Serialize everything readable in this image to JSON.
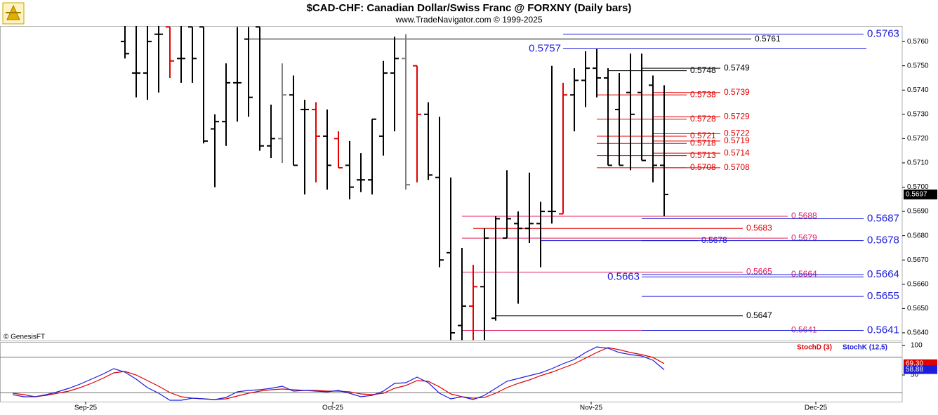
{
  "chart_data": [
    {
      "type": "ohlc",
      "title": "$CAD-CHF:  Canadian Dollar/Swiss Franc @ FORXNY  (Daily bars)",
      "subtitle": "www.TradeNavigator.com © 1999-2025",
      "credit": "© GenesisFT",
      "last_label": "0.5697",
      "xlim": [
        -11.125,
        69.1875
      ],
      "xticks": [
        {
          "value": -3.5,
          "label": "Sep-25"
        },
        {
          "value": 18.5,
          "label": "Oct-25"
        },
        {
          "value": 41.5,
          "label": "Nov-25"
        },
        {
          "value": 61.5,
          "label": "Dec-25"
        }
      ],
      "ylim": [
        0.56368,
        0.57664
      ],
      "yticks": [
        {
          "value": 0.564,
          "label": "0.5640"
        },
        {
          "value": 0.565,
          "label": "0.5650"
        },
        {
          "value": 0.566,
          "label": "0.5660"
        },
        {
          "value": 0.567,
          "label": "0.5670"
        },
        {
          "value": 0.568,
          "label": "0.5680"
        },
        {
          "value": 0.569,
          "label": "0.5690"
        },
        {
          "value": 0.57,
          "label": "0.5700"
        },
        {
          "value": 0.571,
          "label": "0.5710"
        },
        {
          "value": 0.572,
          "label": "0.5720"
        },
        {
          "value": 0.573,
          "label": "0.5730"
        },
        {
          "value": 0.574,
          "label": "0.5740"
        },
        {
          "value": 0.575,
          "label": "0.5750"
        },
        {
          "value": 0.576,
          "label": "0.5760"
        }
      ],
      "x": [
        0,
        1,
        2,
        3,
        4,
        5,
        6,
        7,
        8,
        9,
        10,
        11,
        12,
        13,
        14,
        15,
        16,
        17,
        18,
        19,
        20,
        21,
        22,
        23,
        24,
        25,
        26,
        27,
        28,
        29,
        30,
        31,
        32,
        33,
        34,
        35,
        36,
        37,
        38,
        39,
        40,
        41,
        42,
        43,
        44,
        45,
        46,
        47,
        48
      ],
      "open": [
        0.576,
        0.5747,
        0.5747,
        0.5763,
        0.5766,
        0.5753,
        0.5766,
        0.5766,
        0.5724,
        0.5727,
        0.5743,
        0.5761,
        0.5766,
        0.5717,
        0.572,
        0.5738,
        0.5732,
        0.5732,
        0.5721,
        0.572,
        0.5709,
        0.5703,
        0.5703,
        0.5721,
        0.5747,
        0.5753,
        0.575,
        0.573,
        0.5704,
        0.5673,
        0.5643,
        0.5651,
        0.5659,
        0.5646,
        0.5679,
        0.5685,
        0.5683,
        0.5685,
        0.569,
        0.5689,
        0.5738,
        0.5744,
        0.5749,
        0.5745,
        0.5732,
        0.5739,
        0.5739,
        0.5742,
        0.5709
      ],
      "high": [
        0.5768,
        0.5768,
        0.5768,
        0.5768,
        0.5766,
        0.5768,
        0.5766,
        0.5766,
        0.573,
        0.5751,
        0.5766,
        0.5766,
        0.5766,
        0.5734,
        0.5751,
        0.5746,
        0.5736,
        0.5735,
        0.5732,
        0.5723,
        0.5719,
        0.5714,
        0.5728,
        0.5752,
        0.5762,
        0.5763,
        0.575,
        0.5735,
        0.5729,
        0.5704,
        0.5675,
        0.5668,
        0.5683,
        0.5688,
        0.5707,
        0.569,
        0.5706,
        0.5694,
        0.575,
        0.5743,
        0.5749,
        0.5756,
        0.5757,
        0.5749,
        0.5747,
        0.5755,
        0.5755,
        0.5746,
        0.5742
      ],
      "low": [
        0.5753,
        0.5737,
        0.5736,
        0.5739,
        0.5745,
        0.5743,
        0.5743,
        0.5718,
        0.57,
        0.5717,
        0.5727,
        0.5729,
        0.5715,
        0.5712,
        0.571,
        0.5709,
        0.5697,
        0.5702,
        0.5699,
        0.5708,
        0.5695,
        0.5698,
        0.5697,
        0.5713,
        0.5723,
        0.5699,
        0.5702,
        0.5703,
        0.5667,
        0.5637,
        0.5637,
        0.5637,
        0.5637,
        0.5645,
        0.5679,
        0.5652,
        0.5677,
        0.5667,
        0.5685,
        0.5689,
        0.5723,
        0.5733,
        0.5737,
        0.5709,
        0.5709,
        0.5707,
        0.5711,
        0.5702,
        0.5688
      ],
      "close": [
        0.5755,
        0.5747,
        0.576,
        0.5763,
        0.5752,
        0.5753,
        0.5753,
        0.5719,
        0.5727,
        0.5743,
        0.5743,
        0.5737,
        0.5717,
        0.572,
        0.5738,
        0.5709,
        0.5732,
        0.5721,
        0.5709,
        0.5708,
        0.57,
        0.5703,
        0.5728,
        0.5747,
        0.5753,
        0.5701,
        0.573,
        0.5705,
        0.567,
        0.564,
        0.5651,
        0.5659,
        0.5679,
        0.5687,
        0.5687,
        0.5683,
        0.5685,
        0.569,
        0.569,
        0.5738,
        0.5744,
        0.5749,
        0.5745,
        0.5709,
        0.5709,
        0.573,
        0.5711,
        0.5709,
        0.5697
      ],
      "colors": [
        "#000",
        "#000",
        "#000",
        "#000",
        "#e00000",
        "#000",
        "#000",
        "#000",
        "#000",
        "#000",
        "#000",
        "#000",
        "#000",
        "#000",
        "#808080",
        "#000",
        "#000",
        "#e00000",
        "#000",
        "#e00000",
        "#000",
        "#000",
        "#000",
        "#000",
        "#000",
        "#808080",
        "#e00000",
        "#000",
        "#000",
        "#000",
        "#000",
        "#e00000",
        "#000",
        "#000",
        "#000",
        "#000",
        "#000",
        "#000",
        "#000",
        "#e00000",
        "#000",
        "#000",
        "#000",
        "#000",
        "#000",
        "#000",
        "#000",
        "#000",
        "#000"
      ],
      "levels": [
        {
          "price": 0.5763,
          "label": "0.5763",
          "color": "#1c1cdc",
          "from": 39,
          "to": 65.75,
          "label_side": "right",
          "kind": "major"
        },
        {
          "price": 0.5757,
          "label": "0.5757",
          "color": "#1c1cdc",
          "from": 39,
          "to": 66,
          "label_side": "left",
          "kind": "major"
        },
        {
          "price": 0.5761,
          "label": "0.5761",
          "color": "#000",
          "from": 11,
          "to": 55.75,
          "label_side": "right",
          "kind": "minor"
        },
        {
          "price": 0.5749,
          "label": "0.5749",
          "color": "#000",
          "from": 46,
          "to": 53,
          "label_side": "right",
          "kind": "minor"
        },
        {
          "price": 0.5748,
          "label": "0.5748",
          "color": "#000",
          "from": 43,
          "to": 50,
          "label_side": "right",
          "kind": "minor"
        },
        {
          "price": 0.5739,
          "label": "0.5739",
          "color": "#e00000",
          "from": 47,
          "to": 53,
          "label_side": "right",
          "kind": "minor"
        },
        {
          "price": 0.5738,
          "label": "0.5738",
          "color": "#e00000",
          "from": 42,
          "to": 50,
          "label_side": "right",
          "kind": "minor"
        },
        {
          "price": 0.5729,
          "label": "0.5729",
          "color": "#e00000",
          "from": 47,
          "to": 53,
          "label_side": "right",
          "kind": "minor"
        },
        {
          "price": 0.5728,
          "label": "0.5728",
          "color": "#e00000",
          "from": 42,
          "to": 50,
          "label_side": "right",
          "kind": "minor"
        },
        {
          "price": 0.5722,
          "label": "0.5722",
          "color": "#e00000",
          "from": 47,
          "to": 53,
          "label_side": "right",
          "kind": "minor"
        },
        {
          "price": 0.5721,
          "label": "0.5721",
          "color": "#e00000",
          "from": 42,
          "to": 50,
          "label_side": "right",
          "kind": "minor"
        },
        {
          "price": 0.5719,
          "label": "0.5719",
          "color": "#e00000",
          "from": 47,
          "to": 53,
          "label_side": "right",
          "kind": "minor"
        },
        {
          "price": 0.5718,
          "label": "0.5718",
          "color": "#e00000",
          "from": 42,
          "to": 50,
          "label_side": "right",
          "kind": "minor"
        },
        {
          "price": 0.5714,
          "label": "0.5714",
          "color": "#e00000",
          "from": 47,
          "to": 53,
          "label_side": "right",
          "kind": "minor"
        },
        {
          "price": 0.5713,
          "label": "0.5713",
          "color": "#e00000",
          "from": 42,
          "to": 50,
          "label_side": "right",
          "kind": "minor"
        },
        {
          "price": 0.5708,
          "label": "0.5708",
          "color": "#e00000",
          "from": 47,
          "to": 53,
          "label_side": "right",
          "kind": "minor"
        },
        {
          "price": 0.5708,
          "label": "0.5708",
          "color": "#e00000",
          "from": 42,
          "to": 50,
          "label_side": "right",
          "kind": "minor"
        },
        {
          "price": 0.5688,
          "label": "0.5688",
          "color": "#e0205a",
          "from": 30,
          "to": 59,
          "label_side": "right",
          "kind": "minor"
        },
        {
          "price": 0.5687,
          "label": "0.5687",
          "color": "#1c1cdc",
          "from": 46,
          "to": 65.75,
          "label_side": "right",
          "kind": "major"
        },
        {
          "price": 0.5683,
          "label": "0.5683",
          "color": "#e00000",
          "from": 31,
          "to": 55,
          "label_side": "right",
          "kind": "minor"
        },
        {
          "price": 0.5679,
          "label": "0.5679",
          "color": "#e0205a",
          "from": 30,
          "to": 59,
          "label_side": "right",
          "kind": "minor"
        },
        {
          "price": 0.5678,
          "label": "0.5678",
          "color": "#1c1cdc",
          "from": 37,
          "to": 51,
          "label_side": "right",
          "kind": "minor"
        },
        {
          "price": 0.5678,
          "label": "0.5678",
          "color": "#1c1cdc",
          "from": 46,
          "to": 65.75,
          "label_side": "right",
          "kind": "major"
        },
        {
          "price": 0.5665,
          "label": "0.5665",
          "color": "#e0205a",
          "from": 30,
          "to": 55,
          "label_side": "right",
          "kind": "minor"
        },
        {
          "price": 0.5664,
          "label": "0.5664",
          "color": "#e0205a",
          "from": 46,
          "to": 59,
          "label_side": "right",
          "kind": "minor"
        },
        {
          "price": 0.5664,
          "label": "0.5664",
          "color": "#1c1cdc",
          "from": 46,
          "to": 65.75,
          "label_side": "right",
          "kind": "major"
        },
        {
          "price": 0.5663,
          "label": "0.5663",
          "color": "#1c1cdc",
          "from": 46,
          "to": 65.75,
          "label_side": "left",
          "kind": "major"
        },
        {
          "price": 0.5655,
          "label": "0.5655",
          "color": "#1c1cdc",
          "from": 46,
          "to": 65.75,
          "label_side": "right",
          "kind": "major"
        },
        {
          "price": 0.5647,
          "label": "0.5647",
          "color": "#000",
          "from": 33,
          "to": 55,
          "label_side": "right",
          "kind": "minor"
        },
        {
          "price": 0.5641,
          "label": "0.5641",
          "color": "#e0205a",
          "from": 30,
          "to": 59,
          "label_side": "right",
          "kind": "minor"
        },
        {
          "price": 0.5641,
          "label": "0.5641",
          "color": "#1c1cdc",
          "from": 46,
          "to": 65.75,
          "label_side": "right",
          "kind": "major"
        }
      ]
    },
    {
      "type": "line",
      "ylim": [
        4.76,
        105.95
      ],
      "yticks": [
        100,
        50
      ],
      "ref_lines": [
        80,
        20
      ],
      "series": [
        {
          "name": "StochD (3)",
          "color": "#e00000",
          "last_label": "69.30",
          "x": [
            -10,
            -9,
            -8,
            -7,
            -6,
            -5,
            -4,
            -3,
            -2,
            -1,
            0,
            1,
            2,
            3,
            4,
            5,
            6,
            7,
            8,
            9,
            10,
            11,
            12,
            13,
            14,
            15,
            16,
            17,
            18,
            19,
            20,
            21,
            22,
            23,
            24,
            25,
            26,
            27,
            28,
            29,
            30,
            31,
            32,
            33,
            34,
            35,
            36,
            37,
            38,
            39,
            40,
            41,
            42,
            43,
            44,
            45,
            46,
            47,
            48
          ],
          "values": [
            19.0,
            16.7,
            13.1,
            15.5,
            19.0,
            22.6,
            28.6,
            35.7,
            44.0,
            53.6,
            56.0,
            50.0,
            40.5,
            31.0,
            20.2,
            13.1,
            10.7,
            9.5,
            8.3,
            9.5,
            14.3,
            19.0,
            22.6,
            25.0,
            26.2,
            25.0,
            23.8,
            23.8,
            22.6,
            22.6,
            21.4,
            17.9,
            16.7,
            19.0,
            27.4,
            32.1,
            40.5,
            39.3,
            29.8,
            17.9,
            13.1,
            10.7,
            11.9,
            19.0,
            28.6,
            35.7,
            41.7,
            48.8,
            54.8,
            61.9,
            69.0,
            78.6,
            88.1,
            96.4,
            92.9,
            88.1,
            84.5,
            79.8,
            69.3
          ]
        },
        {
          "name": "StochK (12,5)",
          "color": "#1c1cdc",
          "last_label": "58.88",
          "x": [
            -10,
            -9,
            -8,
            -7,
            -6,
            -5,
            -4,
            -3,
            -2,
            -1,
            0,
            1,
            2,
            3,
            4,
            5,
            6,
            7,
            8,
            9,
            10,
            11,
            12,
            13,
            14,
            15,
            16,
            17,
            18,
            19,
            20,
            21,
            22,
            23,
            24,
            25,
            26,
            27,
            28,
            29,
            30,
            31,
            32,
            33,
            34,
            35,
            36,
            37,
            38,
            39,
            40,
            41,
            42,
            43,
            44,
            45,
            46,
            47,
            48
          ],
          "values": [
            16.7,
            13.1,
            13.1,
            16.7,
            21.4,
            27.4,
            34.5,
            42.9,
            51.2,
            60.7,
            54.8,
            42.9,
            28.6,
            19.0,
            7.1,
            7.1,
            10.7,
            9.5,
            8.3,
            11.9,
            21.4,
            23.8,
            25.0,
            27.4,
            31.0,
            22.6,
            23.8,
            22.6,
            21.4,
            23.8,
            19.0,
            13.1,
            15.5,
            22.6,
            35.7,
            36.9,
            46.4,
            36.9,
            19.0,
            9.5,
            13.1,
            8.3,
            15.5,
            27.4,
            39.3,
            44.0,
            48.8,
            53.6,
            60.7,
            69.0,
            76.2,
            88.1,
            97.6,
            95.2,
            88.1,
            84.5,
            82.1,
            75.0,
            58.88
          ]
        }
      ]
    }
  ]
}
